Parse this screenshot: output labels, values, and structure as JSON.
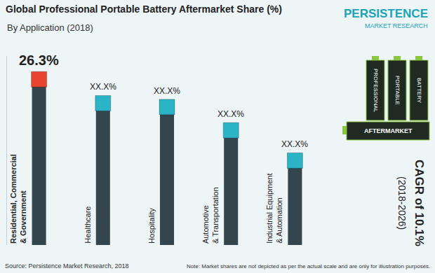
{
  "chart_data": {
    "type": "bar",
    "title": "Global Professional Portable Battery Aftermarket Share (%)",
    "subtitle": "By Application (2018)",
    "categories": [
      "Residential, Commercial & Government",
      "Healthcare",
      "Hospitality",
      "Automotive & Transportation",
      "Industrial Equipment & Automation"
    ],
    "values": [
      26.3,
      22.5,
      21.9,
      18.2,
      13.4
    ],
    "value_labels": [
      "26.3%",
      "XX.X%",
      "XX.X%",
      "XX.X%",
      "XX.X%"
    ],
    "data_labels": true,
    "color": "#34454d",
    "colors": [
      "#e8452f",
      "#2bb3c6",
      "#2bb3c6",
      "#2bb3c6",
      "#2bb3c6"
    ],
    "marker": "square",
    "ylim": [
      0,
      30
    ],
    "yticks": [],
    "tick_labels": false,
    "grid": false,
    "annotations": [
      "CAGR of 10.1%",
      "(2018-2026)"
    ],
    "source": "Source: Persistence Market Research, 2018",
    "note": "Note: Market shares are not depicted as per the actual scale and are only for illustration purposes.",
    "logo": [
      "PERSISTENCE",
      "MARKET RESEARCH"
    ],
    "battery_labels": [
      "PROFESSIONAL",
      "PORTABLE",
      "BATTERY",
      "AFTERMARKET"
    ]
  }
}
